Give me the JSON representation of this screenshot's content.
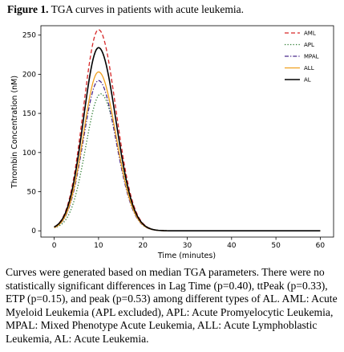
{
  "figure": {
    "label": "Figure 1.",
    "title": "TGA curves in patients with acute leukemia."
  },
  "chart_data": {
    "type": "line",
    "xlabel": "Time (minutes)",
    "ylabel": "Thrombin Concentration (nM)",
    "xlim": [
      -3,
      63
    ],
    "ylim": [
      -8,
      262
    ],
    "xticks": [
      0,
      10,
      20,
      30,
      40,
      50,
      60
    ],
    "yticks": [
      0,
      50,
      100,
      150,
      200,
      250
    ],
    "grid": false,
    "legend_position": "top-right",
    "series": [
      {
        "name": "AML",
        "color": "#d62728",
        "dash": "dashed",
        "peak": 257,
        "peak_time": 10,
        "start": 5
      },
      {
        "name": "APL",
        "color": "#2e7d32",
        "dash": "dotted",
        "peak": 175,
        "peak_time": 10.5,
        "start": 4
      },
      {
        "name": "MPAL",
        "color": "#4b2a8c",
        "dash": "dashdot",
        "peak": 192,
        "peak_time": 10,
        "start": 4
      },
      {
        "name": "ALL",
        "color": "#f0a01e",
        "dash": "solid",
        "peak": 203,
        "peak_time": 10,
        "start": 4
      },
      {
        "name": "AL",
        "color": "#000000",
        "dash": "solid",
        "peak": 234,
        "peak_time": 10,
        "start": 5
      }
    ]
  },
  "caption": "Curves were generated based on median TGA parameters. There were no statistically significant differences in Lag Time (p=0.40), ttPeak (p=0.33), ETP (p=0.15), and peak (p=0.53) among different types of AL. AML: Acute Myeloid Leukemia (APL excluded), APL: Acute Promyelocytic Leukemia, MPAL: Mixed Phenotype Acute Leukemia, ALL: Acute Lymphoblastic Leukemia, AL: Acute Leukemia."
}
